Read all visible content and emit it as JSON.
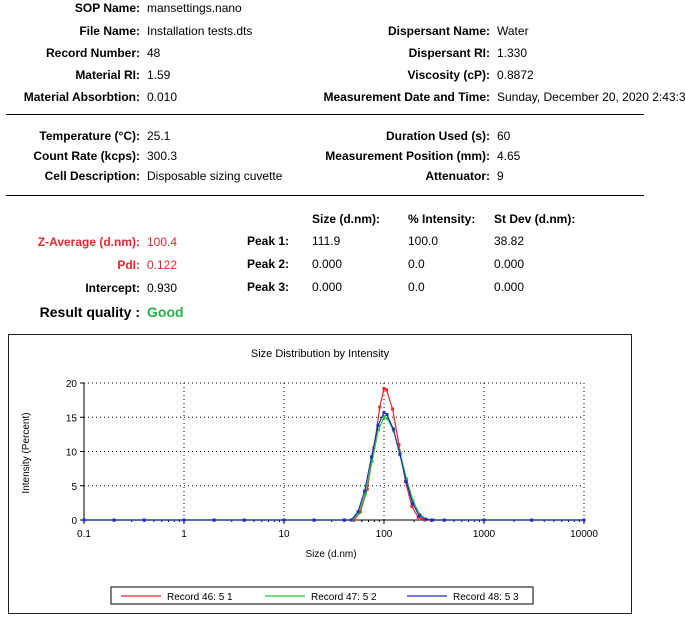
{
  "sop": {
    "label": "SOP Name:",
    "value": "mansettings.nano"
  },
  "left_fields": [
    {
      "label": "File Name:",
      "value": "Installation tests.dts"
    },
    {
      "label": "Record Number:",
      "value": "48"
    },
    {
      "label": "Material RI:",
      "value": "1.59"
    },
    {
      "label": "Material Absorbtion:",
      "value": "0.010"
    }
  ],
  "right_fields": [
    {
      "label": "Dispersant Name:",
      "value": "Water"
    },
    {
      "label": "Dispersant RI:",
      "value": "1.330"
    },
    {
      "label": "Viscosity (cP):",
      "value": "0.8872"
    },
    {
      "label": "Measurement Date and Time:",
      "value": "Sunday, December 20, 2020 2:43:3.."
    }
  ],
  "conditions_left": [
    {
      "label": "Temperature (°C):",
      "value": "25.1"
    },
    {
      "label": "Count Rate (kcps):",
      "value": "300.3"
    },
    {
      "label": "Cell Description:",
      "value": "Disposable sizing cuvette"
    }
  ],
  "conditions_right": [
    {
      "label": "Duration Used (s):",
      "value": "60"
    },
    {
      "label": "Measurement Position (mm):",
      "value": "4.65"
    },
    {
      "label": "Attenuator:",
      "value": "9"
    }
  ],
  "results": {
    "headers": {
      "size": "Size (d.nm):",
      "intensity": "% Intensity:",
      "stdev": "St Dev (d.nm):"
    },
    "zaverage": {
      "label": "Z-Average (d.nm):",
      "value": "100.4"
    },
    "pdi": {
      "label": "PdI:",
      "value": "0.122"
    },
    "intercept": {
      "label": "Intercept:",
      "value": "0.930"
    },
    "quality": {
      "label": "Result quality :",
      "value": "Good"
    },
    "peaks": [
      {
        "label": "Peak 1:",
        "size": "111.9",
        "intensity": "100.0",
        "stdev": "38.82"
      },
      {
        "label": "Peak 2:",
        "size": "0.000",
        "intensity": "0.0",
        "stdev": "0.000"
      },
      {
        "label": "Peak 3:",
        "size": "0.000",
        "intensity": "0.0",
        "stdev": "0.000"
      }
    ]
  },
  "chart_data": {
    "type": "line",
    "title": "Size Distribution by Intensity",
    "xlabel": "Size (d.nm)",
    "ylabel": "Intensity (Percent)",
    "xscale": "log",
    "xlim": [
      0.1,
      10000
    ],
    "ylim": [
      0,
      20
    ],
    "xticks": [
      0.1,
      1,
      10,
      100,
      1000,
      10000
    ],
    "xtick_labels": [
      "0.1",
      "1",
      "10",
      "100",
      "1000",
      "10000"
    ],
    "yticks": [
      0,
      5,
      10,
      15,
      20
    ],
    "ytick_labels": [
      "0",
      "5",
      "10",
      "15",
      "20"
    ],
    "grid": true,
    "legend_position": "bottom",
    "series": [
      {
        "name": "Record 46: 5 1",
        "color": "#e8262d",
        "x": [
          0.1,
          0.2,
          0.4,
          1,
          2,
          4,
          10,
          20,
          40,
          50,
          58,
          68,
          79,
          91,
          100,
          106,
          122,
          141,
          164,
          190,
          220,
          255,
          295,
          400,
          1000,
          3000,
          10000
        ],
        "y": [
          0,
          0,
          0,
          0,
          0,
          0,
          0,
          0,
          0,
          0,
          1.2,
          4.5,
          10.5,
          16.5,
          19.2,
          19.0,
          16.2,
          11.0,
          5.6,
          2.0,
          0.4,
          0,
          0,
          0,
          0,
          0,
          0
        ]
      },
      {
        "name": "Record 47: 5 2",
        "color": "#22c832",
        "x": [
          0.1,
          0.2,
          0.4,
          1,
          2,
          4,
          10,
          20,
          40,
          48,
          56,
          65,
          76,
          88,
          100,
          108,
          125,
          145,
          168,
          195,
          228,
          265,
          310,
          400,
          1000,
          3000,
          10000
        ],
        "y": [
          0,
          0,
          0,
          0,
          0,
          0,
          0,
          0,
          0,
          0,
          1.0,
          3.8,
          8.6,
          13.2,
          15.0,
          14.8,
          13.0,
          9.8,
          6.0,
          2.8,
          0.8,
          0.1,
          0,
          0,
          0,
          0,
          0
        ]
      },
      {
        "name": "Record 48: 5 3",
        "color": "#1f2ec8",
        "x": [
          0.1,
          0.2,
          0.4,
          1,
          2,
          4,
          10,
          20,
          40,
          47,
          55,
          64,
          75,
          87,
          100,
          107,
          124,
          144,
          167,
          194,
          226,
          263,
          305,
          400,
          1000,
          3000,
          10000
        ],
        "y": [
          0,
          0,
          0,
          0,
          0,
          0,
          0,
          0,
          0,
          0,
          1.2,
          4.2,
          9.2,
          13.8,
          15.7,
          15.4,
          13.3,
          9.6,
          5.6,
          2.4,
          0.6,
          0.1,
          0,
          0,
          0,
          0,
          0
        ]
      }
    ]
  }
}
